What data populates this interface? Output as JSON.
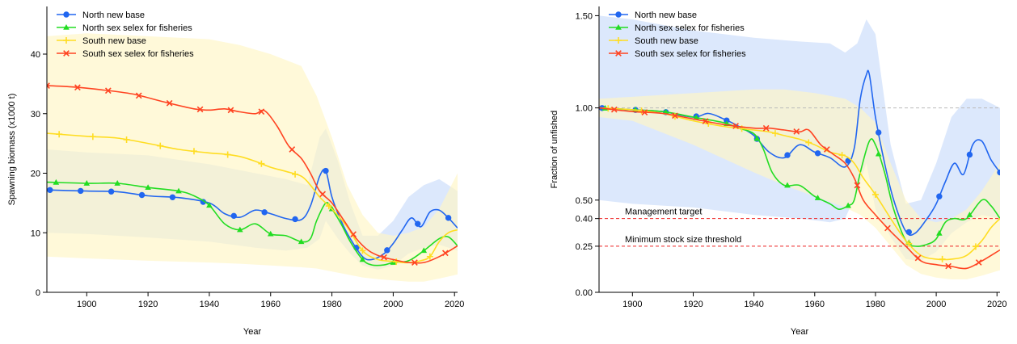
{
  "chart_data": [
    {
      "type": "line",
      "title": "",
      "xlabel": "Year",
      "ylabel": "Spawning biomass (x1000 t)",
      "xlim": [
        1887,
        2021
      ],
      "ylim": [
        0,
        48
      ],
      "xticks": [
        1900,
        1920,
        1940,
        1960,
        1980,
        2000,
        2020
      ],
      "yticks": [
        0,
        10,
        20,
        30,
        40
      ],
      "legend_position": "top-left",
      "series": [
        {
          "name": "North new base",
          "color": "#2166F0",
          "marker": "circle",
          "x": [
            1887,
            1900,
            1910,
            1920,
            1930,
            1940,
            1945,
            1950,
            1955,
            1960,
            1965,
            1970,
            1973,
            1976,
            1978,
            1980,
            1983,
            1986,
            1990,
            1993,
            1997,
            2000,
            2003,
            2006,
            2009,
            2012,
            2015,
            2018,
            2021
          ],
          "values": [
            17.2,
            17.0,
            16.9,
            16.2,
            15.9,
            15.0,
            13.2,
            12.6,
            13.8,
            13.2,
            12.4,
            12.2,
            14.5,
            19.5,
            20.4,
            16.0,
            12.0,
            9.0,
            6.0,
            5.5,
            6.5,
            8.2,
            10.5,
            12.5,
            11.0,
            13.5,
            13.8,
            12.5,
            10.8
          ],
          "marker_x": [
            1888,
            1898,
            1908,
            1918,
            1928,
            1938,
            1948,
            1958,
            1968,
            1978,
            1988,
            1998,
            2008,
            2018
          ]
        },
        {
          "name": "North sex selex for fisheries",
          "color": "#22DD22",
          "marker": "triangle",
          "x": [
            1887,
            1900,
            1910,
            1920,
            1930,
            1935,
            1940,
            1945,
            1950,
            1955,
            1960,
            1965,
            1970,
            1973,
            1975,
            1978,
            1980,
            1983,
            1986,
            1990,
            1993,
            1997,
            2000,
            2005,
            2010,
            2015,
            2018,
            2021
          ],
          "values": [
            18.5,
            18.3,
            18.3,
            17.6,
            17.0,
            16.2,
            14.6,
            11.5,
            10.5,
            11.5,
            9.8,
            9.5,
            8.5,
            9.0,
            12.0,
            15.0,
            14.0,
            11.5,
            8.5,
            5.5,
            4.6,
            4.6,
            5.0,
            5.3,
            7.0,
            9.0,
            9.3,
            7.8
          ],
          "marker_x": [
            1890,
            1900,
            1910,
            1920,
            1930,
            1940,
            1950,
            1960,
            1970,
            1980,
            1990,
            2000,
            2010
          ]
        },
        {
          "name": "South new base",
          "color": "#FFDD22",
          "marker": "plus",
          "x": [
            1887,
            1900,
            1910,
            1920,
            1930,
            1940,
            1945,
            1950,
            1955,
            1960,
            1965,
            1970,
            1973,
            1976,
            1980,
            1985,
            1990,
            1995,
            2000,
            2003,
            2006,
            2009,
            2012,
            2015,
            2018,
            2021
          ],
          "values": [
            26.7,
            26.2,
            25.9,
            25.0,
            24.0,
            23.4,
            23.2,
            22.8,
            22.0,
            21.0,
            20.3,
            19.5,
            18.0,
            16.0,
            14.0,
            11.0,
            7.0,
            5.5,
            5.2,
            5.0,
            5.0,
            5.3,
            6.0,
            8.5,
            10.0,
            10.5
          ],
          "marker_x": [
            1891,
            1902,
            1913,
            1924,
            1935,
            1946,
            1957,
            1968,
            1979,
            1990,
            2001,
            2012
          ]
        },
        {
          "name": "South sex selex for fisheries",
          "color": "#FF4422",
          "marker": "cross",
          "x": [
            1887,
            1895,
            1905,
            1915,
            1925,
            1935,
            1940,
            1945,
            1950,
            1955,
            1958,
            1962,
            1966,
            1970,
            1973,
            1976,
            1980,
            1984,
            1988,
            1992,
            1996,
            2000,
            2005,
            2010,
            2015,
            2021
          ],
          "values": [
            34.7,
            34.5,
            34.0,
            33.3,
            32.0,
            30.8,
            30.6,
            30.8,
            30.3,
            30.0,
            30.5,
            28.0,
            24.5,
            22.5,
            20.0,
            17.0,
            15.0,
            12.0,
            9.0,
            7.0,
            6.0,
            5.5,
            5.0,
            5.0,
            6.0,
            7.8
          ],
          "marker_x": [
            1887,
            1897,
            1907,
            1917,
            1927,
            1937,
            1947,
            1957,
            1967,
            1977,
            1987,
            1997,
            2007,
            2017
          ]
        }
      ],
      "intervals": [
        {
          "series": "North new base",
          "color": "#C9DCFA",
          "x": [
            1887,
            1900,
            1920,
            1940,
            1955,
            1965,
            1972,
            1976,
            1978,
            1982,
            1986,
            1990,
            1995,
            2000,
            2005,
            2010,
            2015,
            2021
          ],
          "lower": [
            10.0,
            9.8,
            9.2,
            8.5,
            7.5,
            7.0,
            7.5,
            9.0,
            12.0,
            9.0,
            6.5,
            4.5,
            3.8,
            4.5,
            6.5,
            7.5,
            8.0,
            7.0
          ],
          "upper": [
            24.0,
            23.5,
            23.0,
            21.5,
            20.0,
            19.0,
            18.0,
            26.0,
            27.5,
            22.0,
            15.0,
            9.5,
            9.5,
            12.0,
            16.0,
            18.0,
            19.0,
            17.0
          ]
        },
        {
          "series": "South new base",
          "color": "#FFF6C4",
          "x": [
            1887,
            1900,
            1920,
            1940,
            1950,
            1960,
            1970,
            1975,
            1980,
            1985,
            1990,
            1995,
            2000,
            2005,
            2010,
            2015,
            2021
          ],
          "lower": [
            6.0,
            5.7,
            5.3,
            5.0,
            4.8,
            4.5,
            4.2,
            4.0,
            3.5,
            3.0,
            2.5,
            2.2,
            2.0,
            1.8,
            1.8,
            2.3,
            3.0
          ],
          "upper": [
            43.0,
            43.5,
            43.0,
            42.5,
            41.5,
            40.0,
            38.0,
            33.0,
            26.0,
            18.0,
            13.0,
            10.0,
            9.5,
            10.0,
            11.0,
            14.0,
            20.0
          ]
        }
      ]
    },
    {
      "type": "line",
      "title": "",
      "xlabel": "Year",
      "ylabel": "Fraction of unfished",
      "xlim": [
        1889,
        2021
      ],
      "ylim": [
        0,
        1.55
      ],
      "xticks": [
        1900,
        1920,
        1940,
        1960,
        1980,
        2000,
        2020
      ],
      "yticks": [
        0.0,
        0.25,
        0.4,
        0.5,
        1.0,
        1.5
      ],
      "ytick_labels": [
        "0.00",
        "0.25",
        "0.40",
        "0.50",
        "1.00",
        "1.50"
      ],
      "legend_position": "top-left",
      "reference_lines": [
        {
          "y": 1.0,
          "color": "#BBBBBB",
          "style": "dashed",
          "label": ""
        },
        {
          "y": 0.4,
          "color": "#EE2222",
          "style": "dashed",
          "label": "Management target"
        },
        {
          "y": 0.25,
          "color": "#EE2222",
          "style": "dashed",
          "label": "Minimum stock size threshold"
        }
      ],
      "series": [
        {
          "name": "North new base",
          "color": "#2166F0",
          "marker": "circle",
          "x": [
            1889,
            1900,
            1910,
            1920,
            1925,
            1930,
            1935,
            1940,
            1945,
            1950,
            1955,
            1960,
            1965,
            1970,
            1973,
            1975,
            1977,
            1978,
            1980,
            1983,
            1986,
            1990,
            1993,
            1997,
            2000,
            2003,
            2006,
            2009,
            2012,
            2015,
            2018,
            2021
          ],
          "values": [
            1.0,
            0.99,
            0.98,
            0.95,
            0.97,
            0.94,
            0.9,
            0.85,
            0.76,
            0.73,
            0.8,
            0.76,
            0.73,
            0.68,
            0.78,
            1.05,
            1.18,
            1.18,
            0.95,
            0.7,
            0.5,
            0.33,
            0.32,
            0.4,
            0.48,
            0.6,
            0.7,
            0.64,
            0.8,
            0.82,
            0.72,
            0.65
          ],
          "marker_x": [
            1890,
            1901,
            1911,
            1921,
            1931,
            1941,
            1951,
            1961,
            1971,
            1981,
            1991,
            2001,
            2011,
            2021
          ]
        },
        {
          "name": "North sex selex for fisheries",
          "color": "#22DD22",
          "marker": "triangle",
          "x": [
            1889,
            1900,
            1910,
            1920,
            1930,
            1935,
            1940,
            1943,
            1946,
            1950,
            1955,
            1960,
            1965,
            1968,
            1971,
            1973,
            1975,
            1978,
            1980,
            1983,
            1986,
            1990,
            1993,
            1997,
            2000,
            2003,
            2006,
            2010,
            2015,
            2018,
            2021
          ],
          "values": [
            1.0,
            0.99,
            0.98,
            0.95,
            0.92,
            0.89,
            0.86,
            0.78,
            0.65,
            0.58,
            0.58,
            0.52,
            0.48,
            0.45,
            0.47,
            0.5,
            0.65,
            0.82,
            0.8,
            0.65,
            0.45,
            0.28,
            0.25,
            0.26,
            0.29,
            0.38,
            0.4,
            0.4,
            0.5,
            0.47,
            0.4
          ],
          "marker_x": [
            1891,
            1901,
            1911,
            1921,
            1931,
            1941,
            1951,
            1961,
            1971,
            1981,
            1991,
            2001,
            2011
          ]
        },
        {
          "name": "South new base",
          "color": "#FFDD22",
          "marker": "plus",
          "x": [
            1889,
            1900,
            1910,
            1920,
            1930,
            1940,
            1945,
            1950,
            1955,
            1960,
            1965,
            1970,
            1973,
            1976,
            1980,
            1985,
            1990,
            1995,
            2000,
            2005,
            2010,
            2015,
            2018,
            2021
          ],
          "values": [
            1.0,
            0.99,
            0.97,
            0.93,
            0.9,
            0.88,
            0.87,
            0.85,
            0.83,
            0.8,
            0.76,
            0.74,
            0.7,
            0.62,
            0.53,
            0.4,
            0.28,
            0.2,
            0.18,
            0.18,
            0.2,
            0.28,
            0.35,
            0.4
          ],
          "marker_x": [
            1892,
            1903,
            1914,
            1925,
            1936,
            1947,
            1958,
            1969,
            1980,
            1991,
            2002,
            2013
          ]
        },
        {
          "name": "South sex selex for fisheries",
          "color": "#FF4422",
          "marker": "cross",
          "x": [
            1889,
            1900,
            1910,
            1920,
            1930,
            1940,
            1945,
            1950,
            1955,
            1958,
            1962,
            1966,
            1970,
            1973,
            1976,
            1980,
            1985,
            1990,
            1995,
            2000,
            2005,
            2010,
            2015,
            2021
          ],
          "values": [
            1.0,
            0.98,
            0.97,
            0.94,
            0.91,
            0.89,
            0.89,
            0.88,
            0.87,
            0.88,
            0.8,
            0.75,
            0.7,
            0.62,
            0.5,
            0.42,
            0.33,
            0.25,
            0.17,
            0.15,
            0.14,
            0.13,
            0.17,
            0.23
          ],
          "marker_x": [
            1894,
            1904,
            1914,
            1924,
            1934,
            1944,
            1954,
            1964,
            1974,
            1984,
            1994,
            2004,
            2014
          ]
        }
      ],
      "intervals": [
        {
          "series": "North new base",
          "color": "#C9DCFA",
          "x": [
            1889,
            1900,
            1920,
            1940,
            1955,
            1965,
            1970,
            1974,
            1977,
            1980,
            1985,
            1990,
            1995,
            2000,
            2005,
            2010,
            2015,
            2021
          ],
          "lower": [
            0.5,
            0.48,
            0.46,
            0.42,
            0.4,
            0.38,
            0.4,
            0.55,
            0.7,
            0.45,
            0.3,
            0.18,
            0.17,
            0.22,
            0.32,
            0.38,
            0.42,
            0.4
          ],
          "upper": [
            1.5,
            1.48,
            1.42,
            1.38,
            1.36,
            1.35,
            1.3,
            1.35,
            1.48,
            1.4,
            0.8,
            0.48,
            0.5,
            0.7,
            0.95,
            1.05,
            1.05,
            1.0
          ]
        },
        {
          "series": "South new base",
          "color": "#FFF6C4",
          "x": [
            1889,
            1900,
            1920,
            1940,
            1950,
            1960,
            1970,
            1975,
            1980,
            1985,
            1990,
            1995,
            2000,
            2005,
            2010,
            2015,
            2021
          ],
          "lower": [
            0.95,
            0.93,
            0.8,
            0.65,
            0.58,
            0.52,
            0.46,
            0.42,
            0.35,
            0.25,
            0.15,
            0.1,
            0.08,
            0.07,
            0.07,
            0.09,
            0.12
          ],
          "upper": [
            1.05,
            1.06,
            1.08,
            1.1,
            1.1,
            1.08,
            1.05,
            1.0,
            0.92,
            0.7,
            0.5,
            0.4,
            0.38,
            0.4,
            0.45,
            0.55,
            0.7
          ]
        }
      ]
    }
  ]
}
